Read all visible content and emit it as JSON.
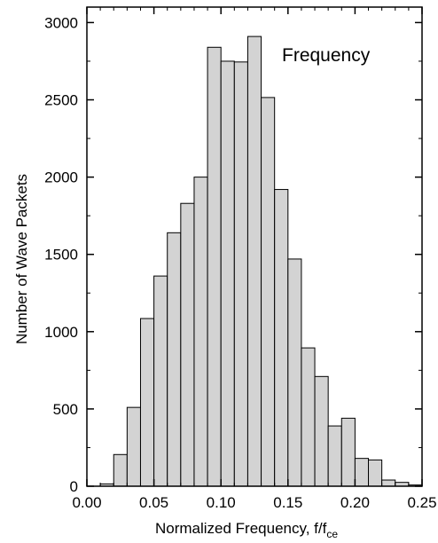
{
  "chart_data": {
    "type": "bar",
    "title": "",
    "annotation": "Frequency",
    "xlabel": "Normalized Frequency, f/f",
    "xlabel_subscript": "ce",
    "ylabel": "Number of Wave Packets",
    "xlim": [
      0.0,
      0.25
    ],
    "ylim": [
      0,
      3100
    ],
    "bin_width": 0.01,
    "bin_starts": [
      0.0,
      0.01,
      0.02,
      0.03,
      0.04,
      0.05,
      0.06,
      0.07,
      0.08,
      0.09,
      0.1,
      0.11,
      0.12,
      0.13,
      0.14,
      0.15,
      0.16,
      0.17,
      0.18,
      0.19,
      0.2,
      0.21,
      0.22,
      0.23,
      0.24
    ],
    "values": [
      0,
      15,
      205,
      510,
      1085,
      1360,
      1640,
      1830,
      2000,
      2840,
      2750,
      2745,
      2910,
      2515,
      1920,
      1470,
      895,
      710,
      390,
      440,
      180,
      170,
      40,
      25,
      8
    ],
    "x_ticks": [
      "0.00",
      "0.05",
      "0.10",
      "0.15",
      "0.20",
      "0.25"
    ],
    "x_tick_values": [
      0.0,
      0.05,
      0.1,
      0.15,
      0.2,
      0.25
    ],
    "y_ticks": [
      "0",
      "500",
      "1000",
      "1500",
      "2000",
      "2500",
      "3000"
    ],
    "y_tick_values": [
      0,
      500,
      1000,
      1500,
      2000,
      2500,
      3000
    ],
    "grid": false,
    "colors": {
      "bar_fill": "#d3d3d3",
      "bar_stroke": "#000000",
      "axis": "#000000"
    }
  }
}
